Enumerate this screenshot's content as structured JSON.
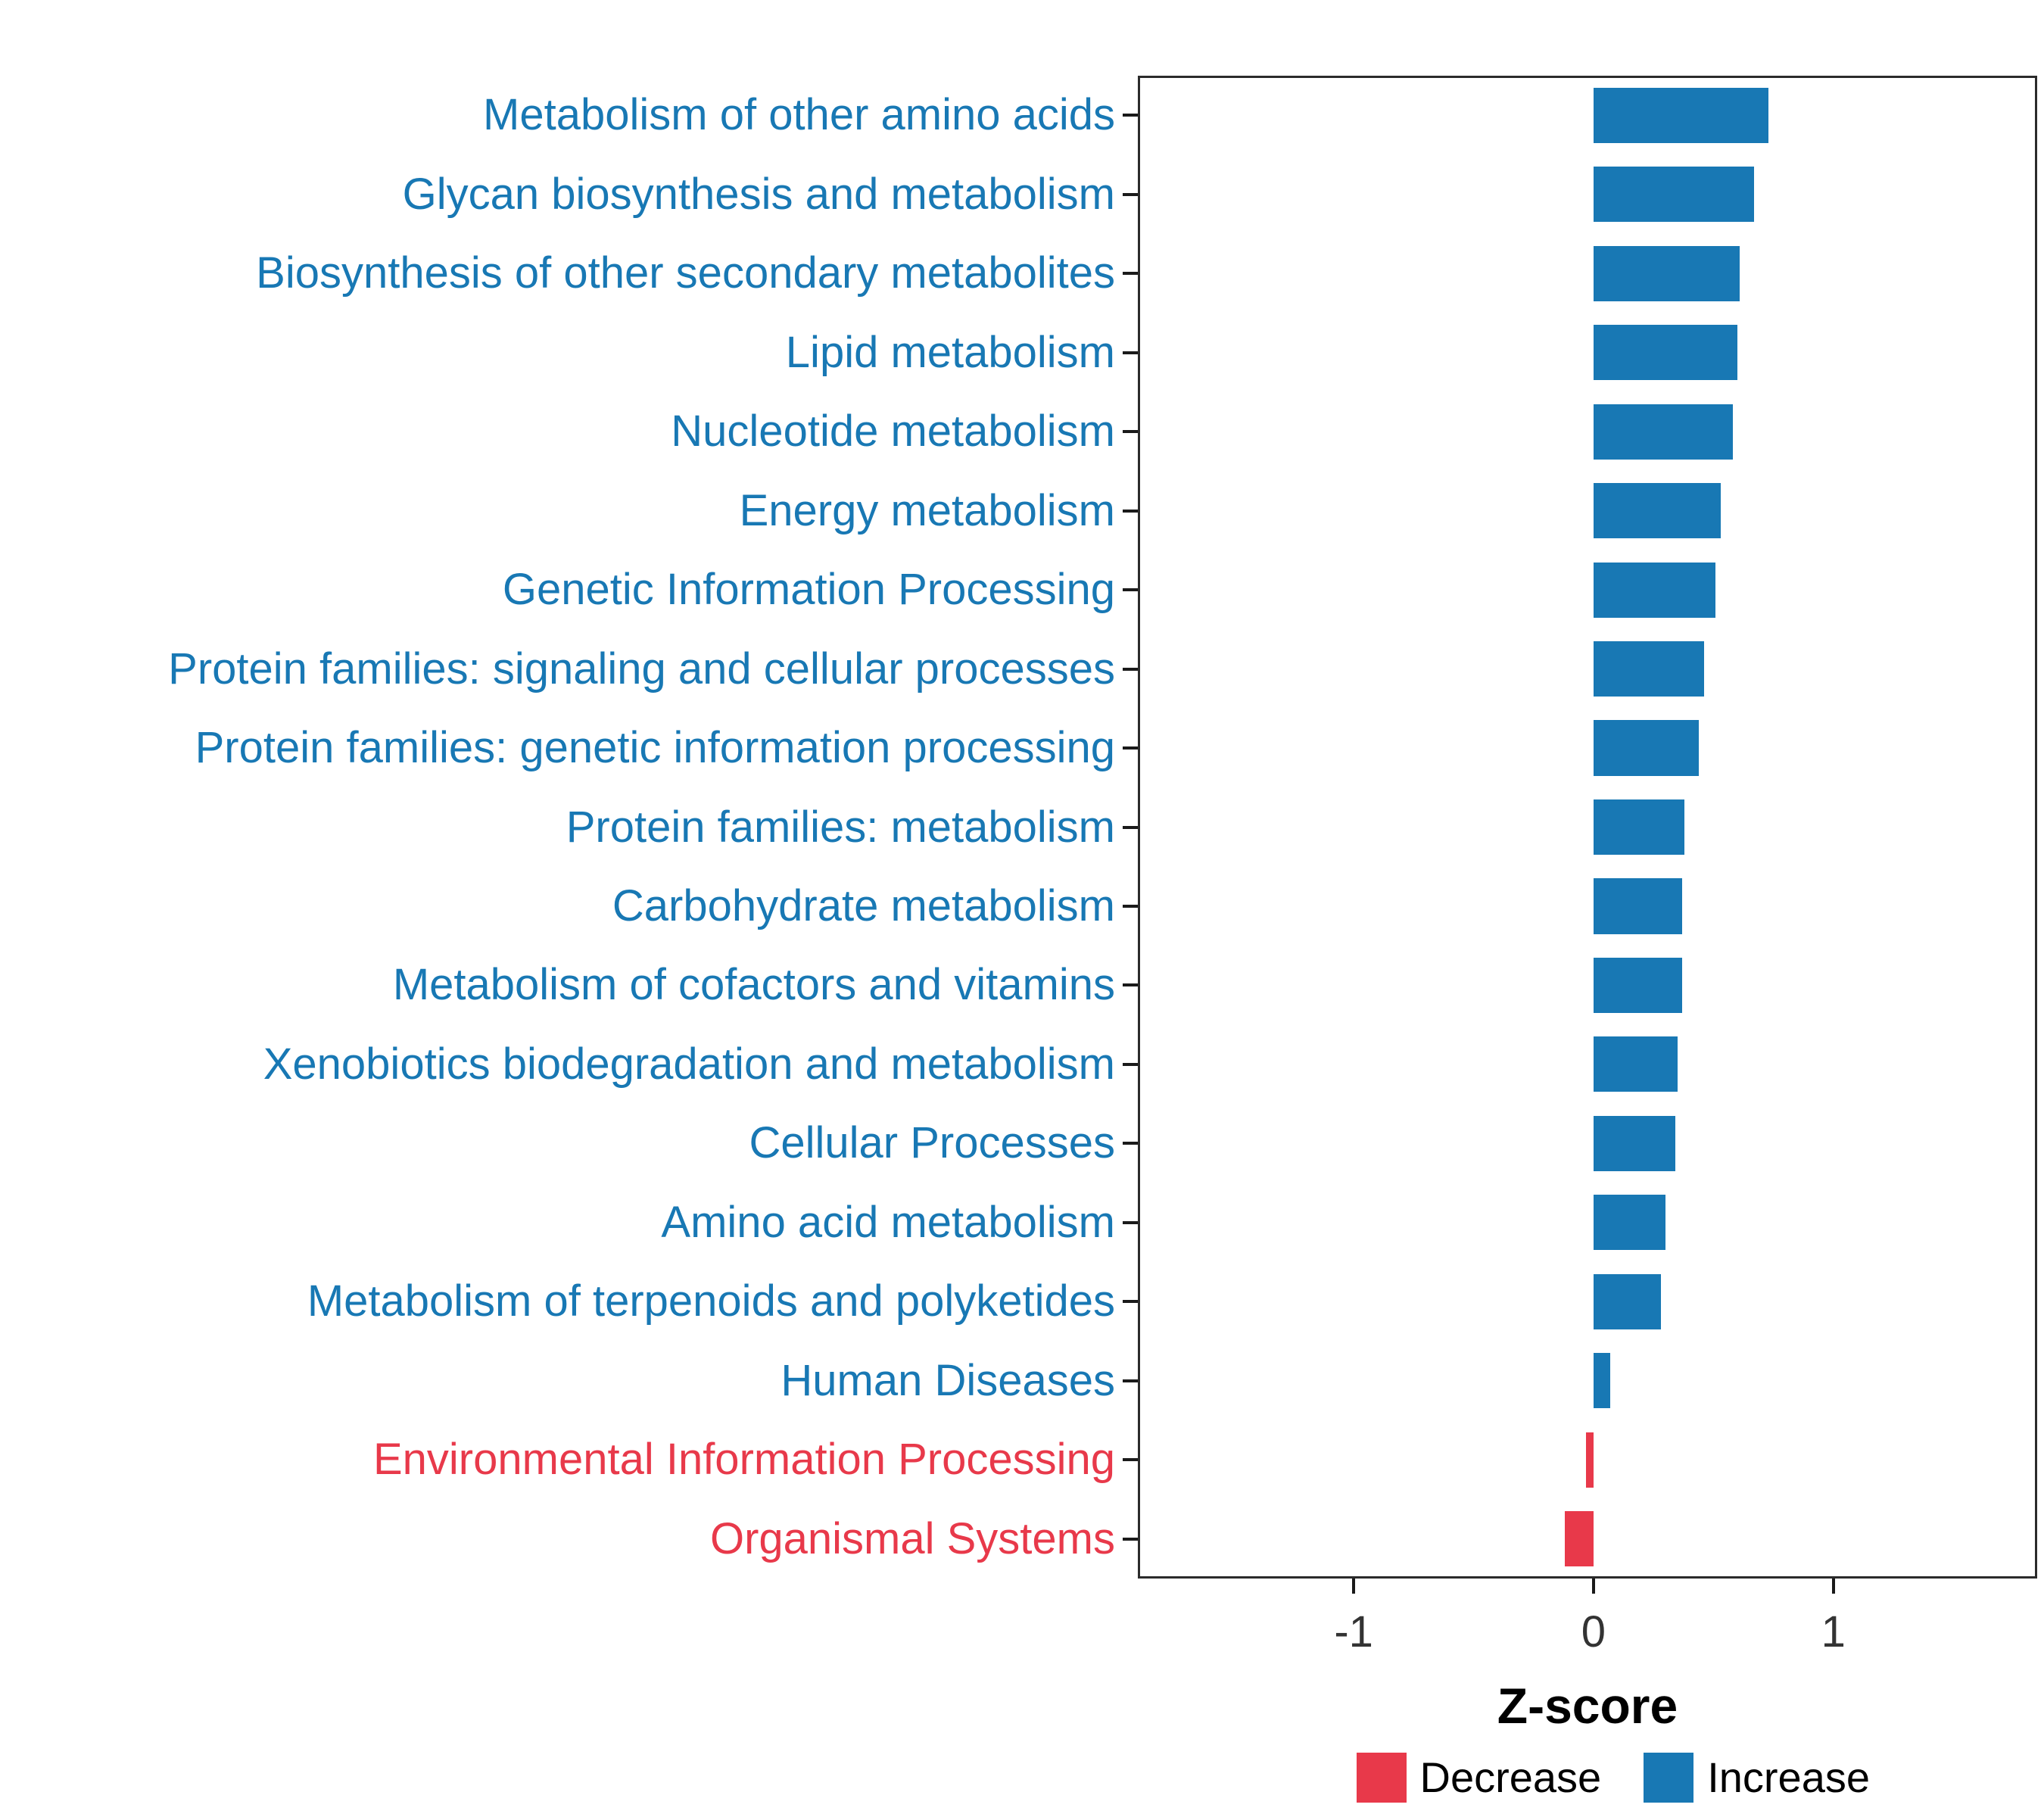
{
  "figure": {
    "background": "#ffffff",
    "panel_border_color": "#2b2b2b"
  },
  "chart_data": {
    "type": "bar",
    "orientation": "horizontal",
    "title": "",
    "xlabel": "Z-score",
    "ylabel": "",
    "xlim": [
      -1.9,
      1.85
    ],
    "x_ticks": [
      {
        "value": -1,
        "label": "-1"
      },
      {
        "value": 0,
        "label": "0"
      },
      {
        "value": 1,
        "label": "1"
      }
    ],
    "grid": false,
    "bar_fraction": 0.7,
    "categories": [
      "Metabolism of other amino acids",
      "Glycan biosynthesis and metabolism",
      "Biosynthesis of other secondary metabolites",
      "Lipid metabolism",
      "Nucleotide metabolism",
      "Energy metabolism",
      "Genetic Information Processing",
      "Protein families: signaling and cellular processes",
      "Protein families: genetic information processing",
      "Protein families: metabolism",
      "Carbohydrate metabolism",
      "Metabolism of cofactors and vitamins",
      "Xenobiotics biodegradation and metabolism",
      "Cellular Processes",
      "Amino acid metabolism",
      "Metabolism of terpenoids and polyketides",
      "Human Diseases",
      "Environmental Information Processing",
      "Organismal Systems"
    ],
    "values": [
      0.73,
      0.67,
      0.61,
      0.6,
      0.58,
      0.53,
      0.51,
      0.46,
      0.44,
      0.38,
      0.37,
      0.37,
      0.35,
      0.34,
      0.3,
      0.28,
      0.07,
      -0.03,
      -0.12
    ],
    "groups": [
      "Increase",
      "Increase",
      "Increase",
      "Increase",
      "Increase",
      "Increase",
      "Increase",
      "Increase",
      "Increase",
      "Increase",
      "Increase",
      "Increase",
      "Increase",
      "Increase",
      "Increase",
      "Increase",
      "Increase",
      "Decrease",
      "Decrease"
    ],
    "group_colors": {
      "Increase": "#1878b4",
      "Decrease": "#e8394a"
    },
    "legend": {
      "position": "bottom-right",
      "entries": [
        {
          "label": "Decrease",
          "color": "#e8394a"
        },
        {
          "label": "Increase",
          "color": "#1878b4"
        }
      ]
    }
  }
}
